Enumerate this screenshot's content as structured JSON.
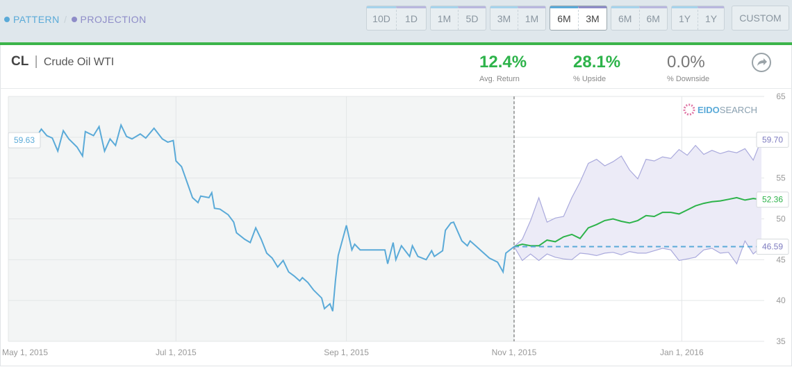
{
  "toolbar": {
    "legend": {
      "pattern": "PATTERN",
      "separator": "/",
      "projection": "PROJECTION"
    },
    "buttons": [
      {
        "left": "10D",
        "right": "1D"
      },
      {
        "left": "1M",
        "right": "5D"
      },
      {
        "left": "3M",
        "right": "1M"
      },
      {
        "left": "6M",
        "right": "3M"
      },
      {
        "left": "6M",
        "right": "6M"
      },
      {
        "left": "1Y",
        "right": "1Y"
      }
    ],
    "custom": "CUSTOM"
  },
  "header": {
    "ticker": "CL",
    "separator": "|",
    "name": "Crude Oil WTI"
  },
  "stats": [
    {
      "value": "12.4%",
      "label": "Avg. Return",
      "color": "#2db34a"
    },
    {
      "value": "28.1%",
      "label": "% Upside",
      "color": "#2db34a"
    },
    {
      "value": "0.0%",
      "label": "% Downside",
      "color": "#777777"
    }
  ],
  "watermark": {
    "brand": "EIDO",
    "suffix": "SEARCH"
  },
  "chart_data": {
    "type": "line",
    "xlim": [
      "2015-05-01",
      "2016-01-31"
    ],
    "xticks": [
      {
        "value": "2015-05-01",
        "label": "May 1, 2015"
      },
      {
        "value": "2015-07-01",
        "label": "Jul 1, 2015"
      },
      {
        "value": "2015-09-01",
        "label": "Sep 1, 2015"
      },
      {
        "value": "2015-11-01",
        "label": "Nov 1, 2015"
      },
      {
        "value": "2016-01-01",
        "label": "Jan 1, 2016"
      }
    ],
    "ylim": [
      35,
      65
    ],
    "yticks": [
      35,
      40,
      45,
      50,
      55,
      60,
      65
    ],
    "grid": true,
    "band_fill": "#ecebf7",
    "series": [
      {
        "color": "#5aaad8",
        "x": [
          "2015-05-01",
          "2015-05-03",
          "2015-05-05",
          "2015-05-08",
          "2015-05-10",
          "2015-05-13",
          "2015-05-15",
          "2015-05-17",
          "2015-05-19",
          "2015-05-21",
          "2015-05-23",
          "2015-05-26",
          "2015-05-28",
          "2015-05-29",
          "2015-06-01",
          "2015-06-03",
          "2015-06-05",
          "2015-06-07",
          "2015-06-09",
          "2015-06-11",
          "2015-06-13",
          "2015-06-15",
          "2015-06-18",
          "2015-06-20",
          "2015-06-23",
          "2015-06-26",
          "2015-06-28",
          "2015-06-30",
          "2015-07-01",
          "2015-07-03",
          "2015-07-05",
          "2015-07-07",
          "2015-07-09",
          "2015-07-10",
          "2015-07-13",
          "2015-07-14",
          "2015-07-15",
          "2015-07-17",
          "2015-07-20",
          "2015-07-22",
          "2015-07-23",
          "2015-07-26",
          "2015-07-28",
          "2015-07-30",
          "2015-08-01",
          "2015-08-03",
          "2015-08-05",
          "2015-08-07",
          "2015-08-09",
          "2015-08-11",
          "2015-08-13",
          "2015-08-15",
          "2015-08-16",
          "2015-08-18",
          "2015-08-20",
          "2015-08-23",
          "2015-08-24",
          "2015-08-26",
          "2015-08-27",
          "2015-08-28",
          "2015-08-29",
          "2015-09-01",
          "2015-09-03",
          "2015-09-04",
          "2015-09-06",
          "2015-09-09",
          "2015-09-15",
          "2015-09-16",
          "2015-09-18",
          "2015-09-19",
          "2015-09-21",
          "2015-09-24",
          "2015-09-25",
          "2015-09-27",
          "2015-09-30",
          "2015-10-02",
          "2015-10-03",
          "2015-10-06",
          "2015-10-07",
          "2015-10-09",
          "2015-10-10",
          "2015-10-13",
          "2015-10-15",
          "2015-10-16",
          "2015-10-18",
          "2015-10-20",
          "2015-10-23",
          "2015-10-26",
          "2015-10-28",
          "2015-10-29",
          "2015-11-01"
        ],
        "values": [
          59.63,
          59.2,
          59.1,
          59.8,
          59.4,
          61.0,
          60.2,
          59.9,
          58.3,
          60.8,
          59.8,
          58.8,
          57.7,
          60.7,
          60.2,
          61.3,
          58.3,
          59.8,
          59.0,
          61.5,
          60.1,
          59.8,
          60.4,
          59.9,
          61.1,
          59.8,
          59.4,
          59.6,
          57.1,
          56.4,
          54.5,
          52.6,
          52.0,
          52.8,
          52.6,
          53.2,
          51.3,
          51.2,
          50.5,
          49.6,
          48.3,
          47.5,
          47.1,
          48.9,
          47.5,
          45.8,
          45.2,
          44.1,
          44.9,
          43.5,
          43.0,
          42.4,
          42.8,
          42.2,
          41.3,
          40.3,
          39.0,
          39.6,
          38.7,
          42.4,
          45.5,
          49.2,
          46.2,
          46.9,
          46.2,
          46.2,
          46.2,
          44.5,
          47.1,
          45.0,
          46.7,
          45.4,
          46.7,
          45.4,
          45.0,
          46.1,
          45.4,
          46.1,
          48.6,
          49.5,
          49.6,
          47.3,
          46.7,
          47.3,
          46.7,
          46.1,
          45.2,
          44.7,
          43.5,
          45.8,
          46.6
        ]
      },
      {
        "color": "#a9a9dc",
        "x": [
          "2015-11-01",
          "2015-11-04",
          "2015-11-07",
          "2015-11-10",
          "2015-11-13",
          "2015-11-16",
          "2015-11-19",
          "2015-11-22",
          "2015-11-25",
          "2015-11-28",
          "2015-12-01",
          "2015-12-04",
          "2015-12-07",
          "2015-12-10",
          "2015-12-13",
          "2015-12-16",
          "2015-12-19",
          "2015-12-22",
          "2015-12-25",
          "2015-12-28",
          "2015-12-31",
          "2016-01-03",
          "2016-01-06",
          "2016-01-09",
          "2016-01-12",
          "2016-01-15",
          "2016-01-18",
          "2016-01-21",
          "2016-01-24",
          "2016-01-27",
          "2016-01-30"
        ],
        "values": [
          46.6,
          47.5,
          49.8,
          52.6,
          49.6,
          50.1,
          50.3,
          52.6,
          54.5,
          56.8,
          57.3,
          56.5,
          57.0,
          57.7,
          56.0,
          54.9,
          57.3,
          57.1,
          57.6,
          57.4,
          58.5,
          57.8,
          59.0,
          57.9,
          58.4,
          58.0,
          58.3,
          58.1,
          58.6,
          57.2,
          59.7
        ],
        "value_labels": [
          null,
          null,
          null,
          null,
          null,
          null,
          null,
          null,
          null,
          null,
          null,
          null,
          null,
          null,
          null,
          null,
          null,
          null,
          null,
          null,
          null,
          null,
          null,
          null,
          null,
          null,
          null,
          null,
          null,
          null,
          "59.70"
        ]
      },
      {
        "color": "#a9a9dc",
        "x": [
          "2015-11-01",
          "2015-11-04",
          "2015-11-07",
          "2015-11-10",
          "2015-11-13",
          "2015-11-16",
          "2015-11-19",
          "2015-11-22",
          "2015-11-25",
          "2015-11-28",
          "2015-12-01",
          "2015-12-04",
          "2015-12-07",
          "2015-12-10",
          "2015-12-13",
          "2015-12-16",
          "2015-12-19",
          "2015-12-22",
          "2015-12-25",
          "2015-12-28",
          "2015-12-31",
          "2016-01-03",
          "2016-01-06",
          "2016-01-09",
          "2016-01-12",
          "2016-01-15",
          "2016-01-18",
          "2016-01-21",
          "2016-01-24",
          "2016-01-27",
          "2016-01-30"
        ],
        "values": [
          46.6,
          44.9,
          45.7,
          44.9,
          45.7,
          45.3,
          45.1,
          45.0,
          45.8,
          45.7,
          45.5,
          45.8,
          45.9,
          45.6,
          46.0,
          45.8,
          45.8,
          46.1,
          46.4,
          46.2,
          44.9,
          45.1,
          45.3,
          46.2,
          46.4,
          45.8,
          45.9,
          44.5,
          47.3,
          45.7,
          46.59
        ]
      },
      {
        "color": "#2db34a",
        "x": [
          "2015-11-01",
          "2015-11-04",
          "2015-11-07",
          "2015-11-10",
          "2015-11-13",
          "2015-11-16",
          "2015-11-19",
          "2015-11-22",
          "2015-11-25",
          "2015-11-28",
          "2015-12-01",
          "2015-12-04",
          "2015-12-07",
          "2015-12-10",
          "2015-12-13",
          "2015-12-16",
          "2015-12-19",
          "2015-12-22",
          "2015-12-25",
          "2015-12-28",
          "2015-12-31",
          "2016-01-03",
          "2016-01-06",
          "2016-01-09",
          "2016-01-12",
          "2016-01-15",
          "2016-01-18",
          "2016-01-21",
          "2016-01-24",
          "2016-01-27",
          "2016-01-30"
        ],
        "values": [
          46.6,
          46.9,
          46.7,
          46.7,
          47.4,
          47.2,
          47.8,
          48.1,
          47.6,
          48.9,
          49.3,
          49.8,
          50.0,
          49.7,
          49.5,
          49.8,
          50.4,
          50.3,
          50.8,
          50.8,
          50.6,
          51.1,
          51.6,
          51.9,
          52.1,
          52.2,
          52.4,
          52.6,
          52.3,
          52.5,
          52.36
        ]
      }
    ]
  }
}
